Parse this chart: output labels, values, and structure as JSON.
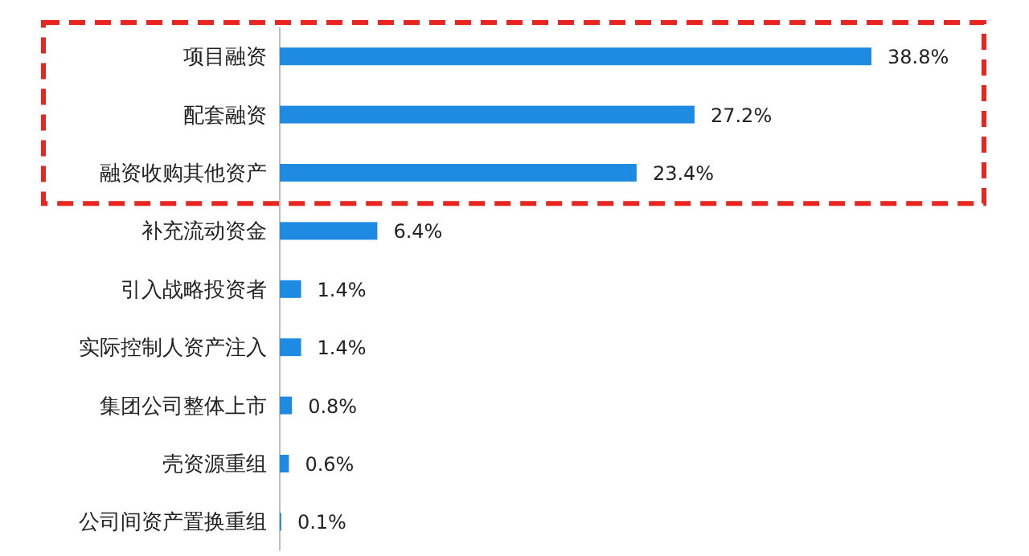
{
  "chart_data": {
    "type": "bar",
    "orientation": "horizontal",
    "categories": [
      "项目融资",
      "配套融资",
      "融资收购其他资产",
      "补充流动资金",
      "引入战略投资者",
      "实际控制人资产注入",
      "集团公司整体上市",
      "壳资源重组",
      "公司间资产置换重组"
    ],
    "values": [
      38.8,
      27.2,
      23.4,
      6.4,
      1.4,
      1.4,
      0.8,
      0.6,
      0.1
    ],
    "value_labels": [
      "38.8%",
      "27.2%",
      "23.4%",
      "6.4%",
      "1.4%",
      "1.4%",
      "0.8%",
      "0.6%",
      "0.1%"
    ],
    "color": "#1f8ae2"
  }
}
